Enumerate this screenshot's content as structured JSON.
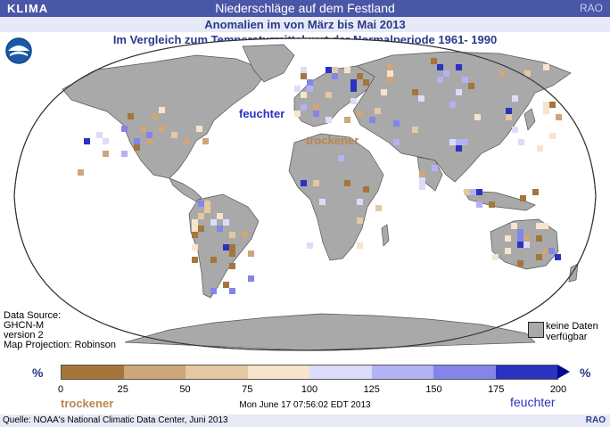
{
  "header": {
    "left": "KLIMA",
    "title": "Niederschläge auf dem Festland",
    "right": "RAO",
    "subtitle": "Anomalien im von März bis Mai 2013",
    "subtitle2": "Im Vergleich zum Temperaturmittelwert der Normalperiode 1961- 1990"
  },
  "map": {
    "label_wetter": "feuchter",
    "label_drier": "trockener",
    "colors": {
      "ocean": "#ffffff",
      "land": "#a9a9a9",
      "outline": "#333333",
      "dry_strong": "#a4763a",
      "dry_mid": "#cda67a",
      "dry_light": "#f4e2c8",
      "wet_light": "#d8d8f8",
      "wet_mid": "#8f8ff0",
      "wet_strong": "#2a32c0"
    }
  },
  "source_info": {
    "line1": "Data Source:",
    "line2": "GHCN-M",
    "line3": "version 2",
    "line4": "Map Projection: Robinson"
  },
  "nodata": {
    "line1": "keine Daten",
    "line2": "verfügbar"
  },
  "legend": {
    "unit_left": "%",
    "unit_right": "%",
    "ticks": [
      "0",
      "25",
      "50",
      "75",
      "100",
      "125",
      "150",
      "175",
      "200"
    ],
    "colors": [
      "#a4763a",
      "#cda67a",
      "#e4c8a2",
      "#f6e4cc",
      "#dcdcfa",
      "#b2b2f4",
      "#8484ea",
      "#2a32c0"
    ],
    "label_dry": "trockener",
    "label_wet": "feuchter"
  },
  "timestamp": "Mon June 17 07:56:02 EDT 2013",
  "footer": {
    "source": "Quelle: NOAA's National Climatic Data Center, Juni 2013",
    "brand": "RAO"
  }
}
